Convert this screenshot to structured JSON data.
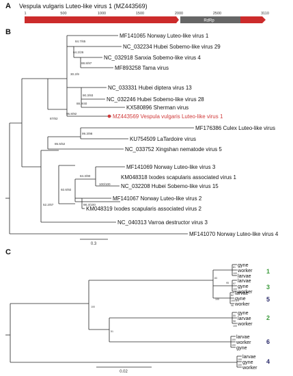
{
  "panelA": {
    "letter": "A",
    "title": "Vespula vulgaris Luteo-like virus 1 (MZ443569)",
    "ticks": [
      "1",
      "500",
      "1000",
      "1500",
      "2000",
      "2500",
      "3110"
    ],
    "rdrp_label": "RdRp",
    "colors": {
      "genome": "#cc2b2b",
      "rdrp": "#666666"
    }
  },
  "panelB": {
    "letter": "B",
    "leaves": [
      "MF141065 Norway Luteo-like virus 1",
      "NC_032234 Hubei Sobemo-like virus 29",
      "NC_032918 Sanxia Sobemo-like virus 4",
      "MF893258 Tama virus",
      "NC_033331 Hubei diptera virus 13",
      "NC_032246 Hubei Sobemo-like virus 28",
      "KX580896 Sherman virus",
      "MZ443569 Vespula vulgaris Luteo-like virus 1",
      "MF176386 Culex Luteo-like virus",
      "KU754509 LaTardoire virus",
      "NC_033752 Xingshan nematode virus 5",
      "MF141069 Norway Luteo-like virus 3",
      "KM048318 Ixodes scapularis associated virus 1",
      "NC_032208 Hubei Sobemo-like virus 15",
      "MF141067 Norway Luteo-like virus 2",
      "KM048319 Ixodes scapularis associated virus 2",
      "NC_040313 Varroa destructor virus 3",
      "MF141070 Norway Luteo-like virus 4"
    ],
    "supports": [
      "84.7/65",
      "64.2/26",
      "88.8/97",
      "30.2/9",
      "90.3/93",
      "88.9/40",
      "95.8/92",
      "87/82",
      "99.3/98",
      "85.5/52",
      "100/100",
      "84.3/90",
      "98.3/100",
      "92.6/92",
      "52.2/67"
    ],
    "scale_label": "0.3",
    "highlight_color": "#d03a3a"
  },
  "panelC": {
    "letter": "C",
    "leaves": [
      "gyne",
      "worker",
      "larvae",
      "larvae",
      "gyne",
      "worker",
      "larvae",
      "gyne",
      "worker",
      "gyne",
      "larvae",
      "worker",
      "larvae",
      "worker",
      "gyne",
      "larvae",
      "gyne",
      "worker"
    ],
    "supports": [
      "81",
      "100",
      "97",
      "100",
      "95",
      "100",
      "62",
      "100",
      "55",
      "98",
      "100",
      "100",
      "83",
      "100",
      "51",
      "100",
      "100",
      "96",
      "100"
    ],
    "groups": [
      {
        "label": "1",
        "color": "#3a9a3a"
      },
      {
        "label": "3",
        "color": "#3a9a3a"
      },
      {
        "label": "5",
        "color": "#2a2a6a"
      },
      {
        "label": "2",
        "color": "#3a9a3a"
      },
      {
        "label": "6",
        "color": "#2a2a6a"
      },
      {
        "label": "4",
        "color": "#2a2a6a"
      }
    ],
    "scale_label": "0.02"
  }
}
